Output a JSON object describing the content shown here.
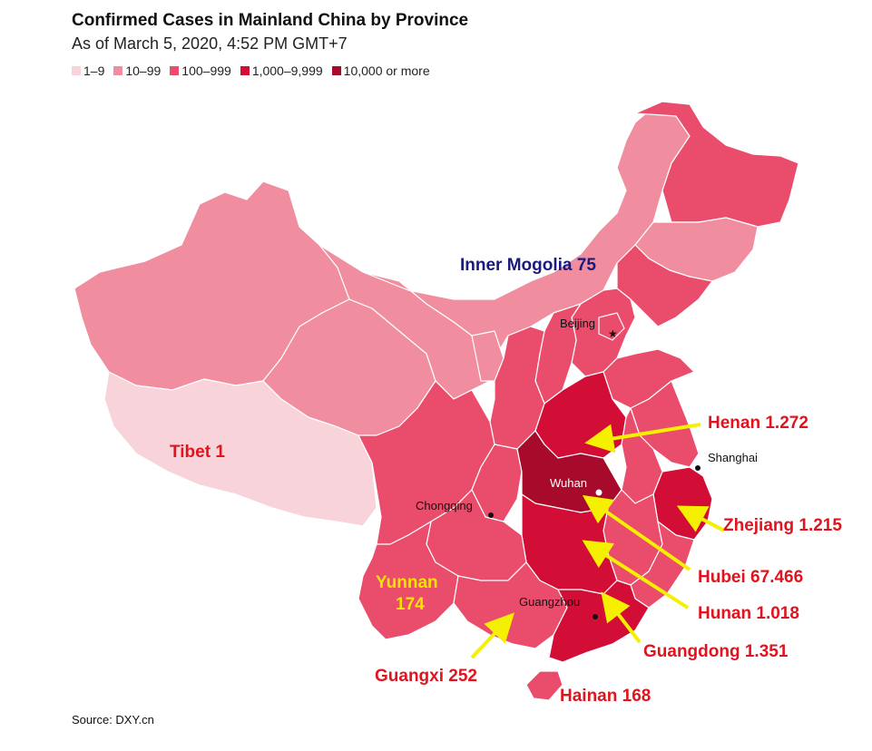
{
  "title": "Confirmed Cases in Mainland China by Province",
  "subtitle": "As of March 5, 2020, 4:52 PM GMT+7",
  "legend": [
    {
      "label": "1–9",
      "color": "#f8d3d9"
    },
    {
      "label": "10–99",
      "color": "#f08ea0"
    },
    {
      "label": "100–999",
      "color": "#ea4c6c"
    },
    {
      "label": "1,000–9,999",
      "color": "#d20d36"
    },
    {
      "label": "10,000 or more",
      "color": "#a80a2b"
    }
  ],
  "source_label": "Source: DXY.cn",
  "cities": {
    "beijing": "Beijing",
    "shanghai": "Shanghai",
    "wuhan": "Wuhan",
    "chongqing": "Chongqing",
    "guangzhou": "Guangzhou"
  },
  "annotations": {
    "inner_mongolia": "Inner Mogolia 75",
    "tibet": "Tibet 1",
    "yunnan_name": "Yunnan",
    "yunnan_value": "174",
    "henan": "Henan 1.272",
    "zhejiang": "Zhejiang 1.215",
    "hubei": "Hubei 67.466",
    "hunan": "Hunan 1.018",
    "guangdong": "Guangdong 1.351",
    "guangxi": "Guangxi 252",
    "hainan": "Hainan 168"
  }
}
